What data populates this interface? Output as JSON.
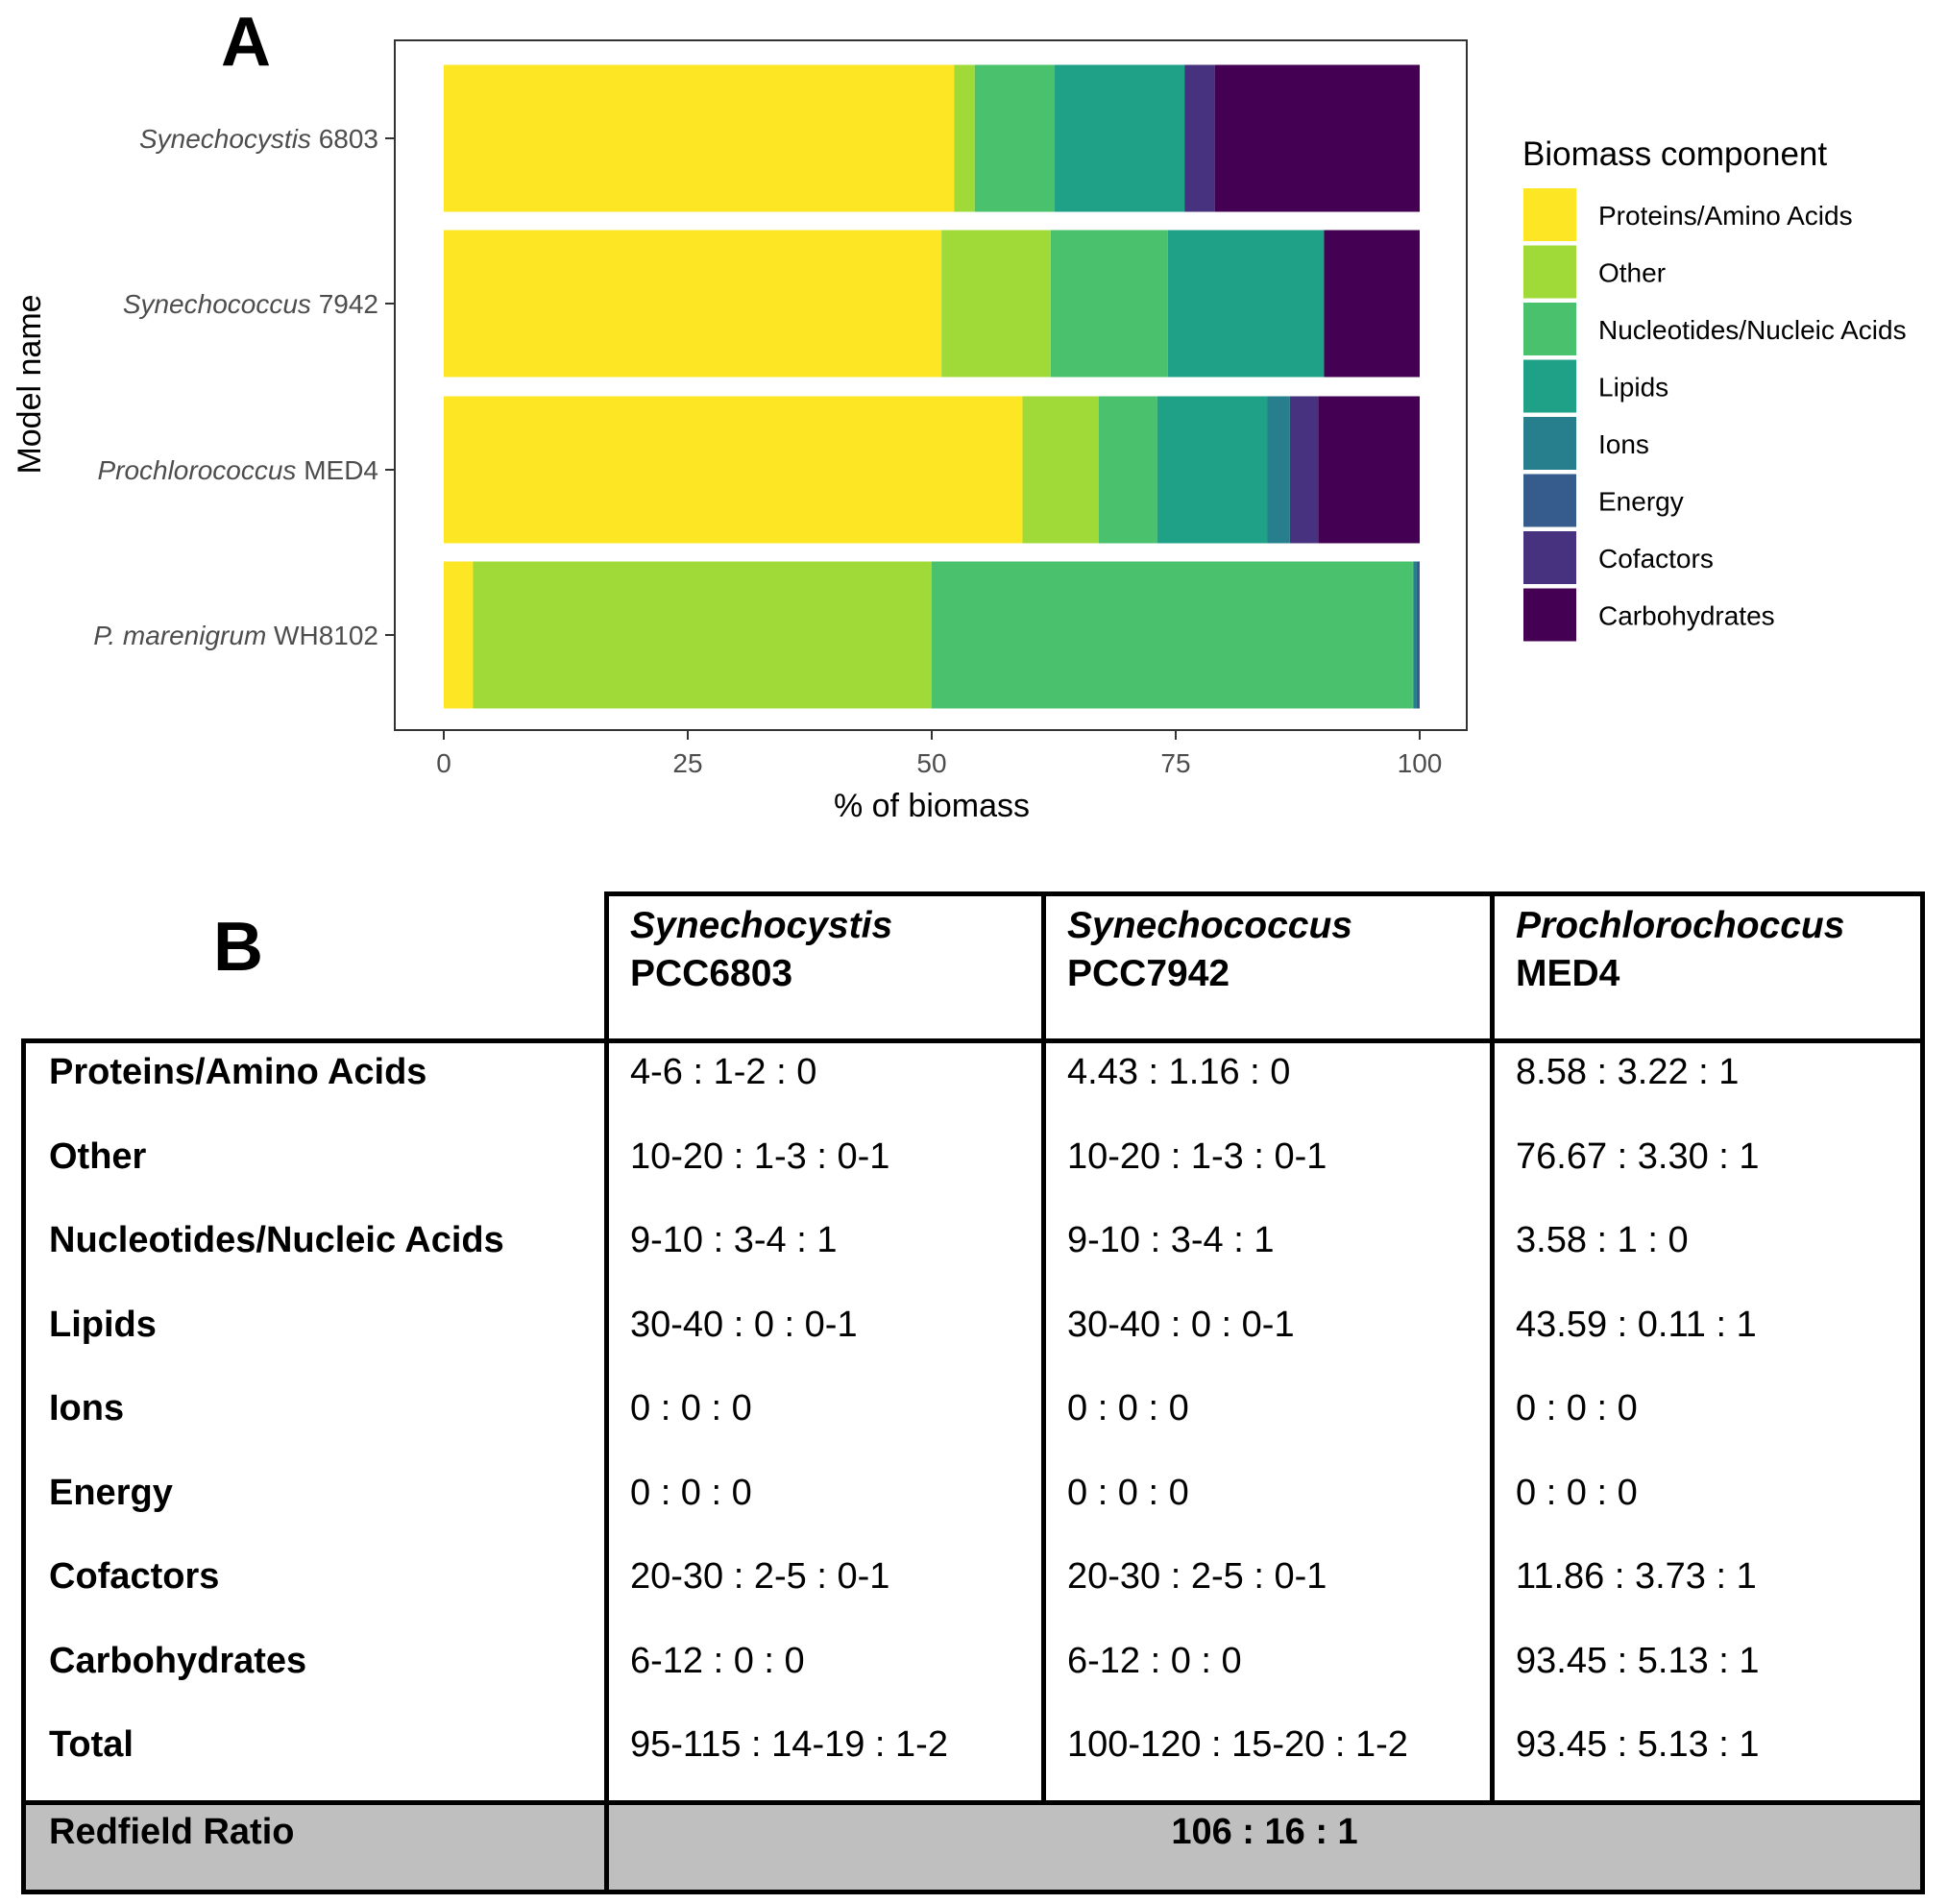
{
  "panel_a_letter": "A",
  "panel_b_letter": "B",
  "chart_data": {
    "type": "bar",
    "orientation": "horizontal",
    "stacked": true,
    "xlabel": "% of biomass",
    "ylabel": "Model name",
    "xlim": [
      0,
      100
    ],
    "x_ticks": [
      "0",
      "25",
      "50",
      "75",
      "100"
    ],
    "legend_title": "Biomass component",
    "legend_position": "right",
    "categories": [
      {
        "genus": "Synechocystis",
        "strain": " 6803"
      },
      {
        "genus": "Synechococcus",
        "strain": " 7942"
      },
      {
        "genus": "Prochlorococcus",
        "strain": " MED4"
      },
      {
        "genus": "P. marenigrum",
        "strain": " WH8102"
      }
    ],
    "series": [
      {
        "name": "Proteins/Amino Acids",
        "color": "#FDE725",
        "values": [
          52.3,
          51.0,
          59.3,
          3.0
        ]
      },
      {
        "name": "Other",
        "color": "#A0DA39",
        "values": [
          2.1,
          11.2,
          7.8,
          47.0
        ]
      },
      {
        "name": "Nucleotides/Nucleic Acids",
        "color": "#4AC16D",
        "values": [
          8.2,
          12.0,
          6.0,
          49.3
        ]
      },
      {
        "name": "Lipids",
        "color": "#1FA187",
        "values": [
          13.3,
          16.0,
          11.3,
          0.1
        ]
      },
      {
        "name": "Ions",
        "color": "#277F8E",
        "values": [
          0.0,
          0.0,
          2.3,
          0.3
        ]
      },
      {
        "name": "Energy",
        "color": "#365C8D",
        "values": [
          0.0,
          0.0,
          0.0,
          0.3
        ]
      },
      {
        "name": "Cofactors",
        "color": "#46327E",
        "values": [
          3.1,
          0.0,
          2.9,
          0.0
        ]
      },
      {
        "name": "Carbohydrates",
        "color": "#440154",
        "values": [
          21.0,
          9.8,
          10.4,
          0.0
        ]
      }
    ]
  },
  "table": {
    "headers": [
      {
        "genus": "Synechocystis",
        "strain": "PCC6803"
      },
      {
        "genus": "Synechococcus",
        "strain": "PCC7942"
      },
      {
        "genus": "Prochlorochoccus",
        "strain": "MED4"
      }
    ],
    "rows": [
      {
        "label": "Proteins/Amino Acids",
        "values": [
          "4-6 : 1-2 : 0",
          "4.43 : 1.16 : 0",
          "8.58 : 3.22 : 1"
        ]
      },
      {
        "label": "Other",
        "values": [
          "10-20 : 1-3 : 0-1",
          "10-20 : 1-3 : 0-1",
          "76.67 : 3.30 : 1"
        ]
      },
      {
        "label": "Nucleotides/Nucleic Acids",
        "values": [
          "9-10 : 3-4 : 1",
          "9-10 : 3-4 : 1",
          "3.58 : 1 : 0"
        ]
      },
      {
        "label": "Lipids",
        "values": [
          "30-40 : 0 : 0-1",
          "30-40 : 0 : 0-1",
          "43.59 : 0.11 : 1"
        ]
      },
      {
        "label": "Ions",
        "values": [
          "0 : 0 : 0",
          "0 : 0 : 0",
          "0 : 0 : 0"
        ]
      },
      {
        "label": "Energy",
        "values": [
          "0 : 0 : 0",
          "0 : 0 : 0",
          "0 : 0 : 0"
        ]
      },
      {
        "label": "Cofactors",
        "values": [
          "20-30 : 2-5 : 0-1",
          "20-30 : 2-5 : 0-1",
          "11.86 : 3.73 : 1"
        ]
      },
      {
        "label": "Carbohydrates",
        "values": [
          "6-12 : 0 : 0",
          "6-12 : 0 : 0",
          "93.45 : 5.13 : 1"
        ]
      },
      {
        "label": "Total",
        "values": [
          "95-115 : 14-19 : 1-2",
          "100-120 : 15-20 : 1-2",
          "93.45 : 5.13 : 1"
        ]
      }
    ],
    "redfield_label": "Redfield Ratio",
    "redfield_value": "106 : 16 : 1"
  }
}
